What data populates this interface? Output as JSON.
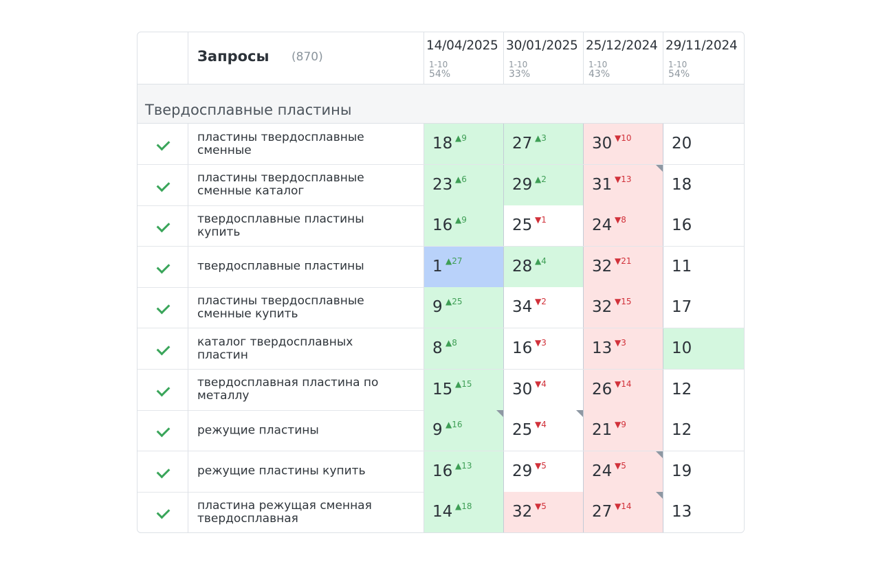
{
  "header": {
    "title": "Запросы",
    "count": "(870)",
    "dates": [
      {
        "date": "14/04/2025",
        "range": "1-10",
        "pct": "54%"
      },
      {
        "date": "30/01/2025",
        "range": "1-10",
        "pct": "33%"
      },
      {
        "date": "25/12/2024",
        "range": "1-10",
        "pct": "43%"
      },
      {
        "date": "29/11/2024",
        "range": "1-10",
        "pct": "54%"
      }
    ]
  },
  "group": {
    "label": "Твердосплавные пластины"
  },
  "colors": {
    "green": "#d4f7df",
    "red": "#fde3e3",
    "blue": "#b9d2fa",
    "up": "#3e9e55",
    "down": "#d1313a"
  },
  "rows": [
    {
      "query": "пластины твердосплавные сменные",
      "cells": [
        {
          "value": "18",
          "delta": "▲9",
          "dir": "up",
          "bg": "green"
        },
        {
          "value": "27",
          "delta": "▲3",
          "dir": "up",
          "bg": "green"
        },
        {
          "value": "30",
          "delta": "▼10",
          "dir": "down",
          "bg": "red"
        },
        {
          "value": "20",
          "delta": "",
          "dir": "",
          "bg": "white"
        }
      ]
    },
    {
      "query": "пластины твердосплавные сменные каталог",
      "cells": [
        {
          "value": "23",
          "delta": "▲6",
          "dir": "up",
          "bg": "green"
        },
        {
          "value": "29",
          "delta": "▲2",
          "dir": "up",
          "bg": "green"
        },
        {
          "value": "31",
          "delta": "▼13",
          "dir": "down",
          "bg": "red",
          "marker": true
        },
        {
          "value": "18",
          "delta": "",
          "dir": "",
          "bg": "white"
        }
      ]
    },
    {
      "query": "твердосплавные пластины купить",
      "cells": [
        {
          "value": "16",
          "delta": "▲9",
          "dir": "up",
          "bg": "green"
        },
        {
          "value": "25",
          "delta": "▼1",
          "dir": "down",
          "bg": "white"
        },
        {
          "value": "24",
          "delta": "▼8",
          "dir": "down",
          "bg": "red"
        },
        {
          "value": "16",
          "delta": "",
          "dir": "",
          "bg": "white"
        }
      ]
    },
    {
      "query": "твердосплавные пластины",
      "cells": [
        {
          "value": "1",
          "delta": "▲27",
          "dir": "up",
          "bg": "blue"
        },
        {
          "value": "28",
          "delta": "▲4",
          "dir": "up",
          "bg": "green"
        },
        {
          "value": "32",
          "delta": "▼21",
          "dir": "down",
          "bg": "red"
        },
        {
          "value": "11",
          "delta": "",
          "dir": "",
          "bg": "white"
        }
      ]
    },
    {
      "query": "пластины твердосплавные сменные купить",
      "cells": [
        {
          "value": "9",
          "delta": "▲25",
          "dir": "up",
          "bg": "green"
        },
        {
          "value": "34",
          "delta": "▼2",
          "dir": "down",
          "bg": "white"
        },
        {
          "value": "32",
          "delta": "▼15",
          "dir": "down",
          "bg": "red"
        },
        {
          "value": "17",
          "delta": "",
          "dir": "",
          "bg": "white"
        }
      ]
    },
    {
      "query": "каталог твердосплавных пластин",
      "cells": [
        {
          "value": "8",
          "delta": "▲8",
          "dir": "up",
          "bg": "green"
        },
        {
          "value": "16",
          "delta": "▼3",
          "dir": "down",
          "bg": "white"
        },
        {
          "value": "13",
          "delta": "▼3",
          "dir": "down",
          "bg": "red"
        },
        {
          "value": "10",
          "delta": "",
          "dir": "",
          "bg": "green"
        }
      ]
    },
    {
      "query": "твердосплавная пластина по металлу",
      "cells": [
        {
          "value": "15",
          "delta": "▲15",
          "dir": "up",
          "bg": "green"
        },
        {
          "value": "30",
          "delta": "▼4",
          "dir": "down",
          "bg": "white"
        },
        {
          "value": "26",
          "delta": "▼14",
          "dir": "down",
          "bg": "red"
        },
        {
          "value": "12",
          "delta": "",
          "dir": "",
          "bg": "white"
        }
      ]
    },
    {
      "query": "режущие пластины",
      "cells": [
        {
          "value": "9",
          "delta": "▲16",
          "dir": "up",
          "bg": "green",
          "marker": true
        },
        {
          "value": "25",
          "delta": "▼4",
          "dir": "down",
          "bg": "white",
          "marker": true
        },
        {
          "value": "21",
          "delta": "▼9",
          "dir": "down",
          "bg": "red"
        },
        {
          "value": "12",
          "delta": "",
          "dir": "",
          "bg": "white"
        }
      ]
    },
    {
      "query": "режущие пластины купить",
      "cells": [
        {
          "value": "16",
          "delta": "▲13",
          "dir": "up",
          "bg": "green"
        },
        {
          "value": "29",
          "delta": "▼5",
          "dir": "down",
          "bg": "white"
        },
        {
          "value": "24",
          "delta": "▼5",
          "dir": "down",
          "bg": "red",
          "marker": true
        },
        {
          "value": "19",
          "delta": "",
          "dir": "",
          "bg": "white"
        }
      ]
    },
    {
      "query": "пластина режущая сменная твердосплавная",
      "cells": [
        {
          "value": "14",
          "delta": "▲18",
          "dir": "up",
          "bg": "green"
        },
        {
          "value": "32",
          "delta": "▼5",
          "dir": "down",
          "bg": "red"
        },
        {
          "value": "27",
          "delta": "▼14",
          "dir": "down",
          "bg": "red",
          "marker": true
        },
        {
          "value": "13",
          "delta": "",
          "dir": "",
          "bg": "white"
        }
      ]
    }
  ]
}
